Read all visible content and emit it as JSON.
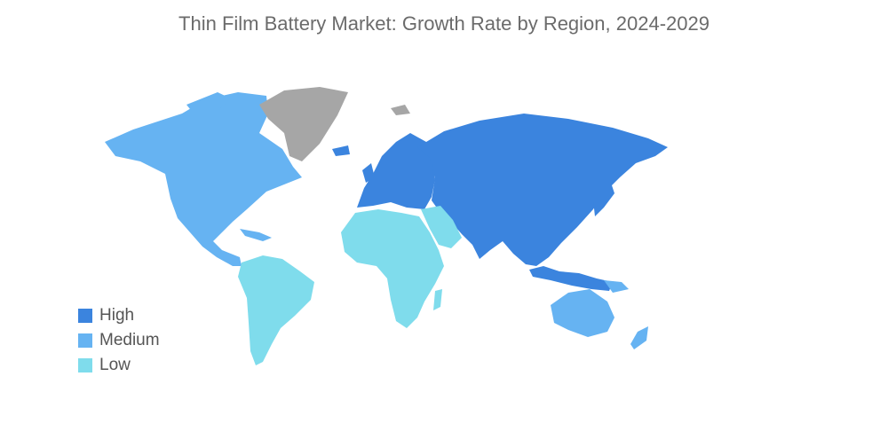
{
  "title": "Thin Film Battery Market: Growth Rate by Region, 2024-2029",
  "colors": {
    "high": "#3b84de",
    "medium": "#66b3f2",
    "low": "#7fdcec",
    "no_data": "#a6a6a6"
  },
  "legend": [
    {
      "label": "High",
      "color": "#3b84de"
    },
    {
      "label": "Medium",
      "color": "#66b3f2"
    },
    {
      "label": "Low",
      "color": "#7fdcec"
    }
  ],
  "regions": {
    "north_america": "Medium",
    "south_america": "Low",
    "europe": "High",
    "russia": "High",
    "asia": "High",
    "middle_east_africa": "Low",
    "australia_new_zealand": "Medium",
    "greenland": "No data"
  }
}
